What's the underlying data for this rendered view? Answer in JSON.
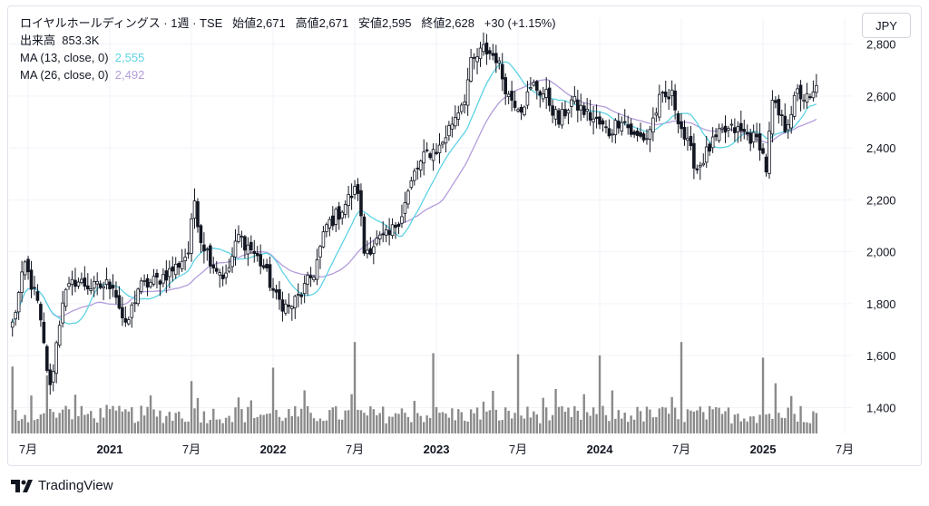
{
  "header": {
    "symbol_line": "ロイヤルホールディングス · 1週 · TSE",
    "open_label": "始値",
    "open": "2,671",
    "high_label": "高値",
    "high": "2,671",
    "low_label": "安値",
    "low": "2,595",
    "close_label": "終値",
    "close": "2,628",
    "change": "+30 (+1.15%)",
    "volume_label": "出来高",
    "volume": "853.3K",
    "ma1_label": "MA (13, close, 0)",
    "ma1_value": "2,555",
    "ma2_label": "MA (26, close, 0)",
    "ma2_value": "2,492"
  },
  "currency": "JPY",
  "footer": {
    "brand": "TradingView"
  },
  "colors": {
    "up": "#131722",
    "down": "#131722",
    "ma13": "#5dd3e4",
    "ma26": "#b39ddb",
    "volume": "#8a8a8a",
    "grid": "#f0f3fa"
  },
  "chart_data": {
    "type": "candlestick",
    "ylim": [
      1300,
      2900
    ],
    "y_ticks": [
      1400,
      1600,
      1800,
      2000,
      2200,
      2400,
      2600,
      2800
    ],
    "y_tick_labels": [
      "1,400",
      "1,600",
      "1,800",
      "2,000",
      "2,200",
      "2,400",
      "2,600",
      "2,800"
    ],
    "x_ticks": [
      {
        "label": "7月",
        "week": 5
      },
      {
        "label": "2021",
        "week": 31
      },
      {
        "label": "7月",
        "week": 57
      },
      {
        "label": "2022",
        "week": 83
      },
      {
        "label": "7月",
        "week": 109
      },
      {
        "label": "2023",
        "week": 135
      },
      {
        "label": "7月",
        "week": 161
      },
      {
        "label": "2024",
        "week": 187
      },
      {
        "label": "7月",
        "week": 213
      },
      {
        "label": "2025",
        "week": 239
      },
      {
        "label": "7月",
        "week": 265
      }
    ],
    "weeks": 260,
    "close_path": [
      [
        0,
        1720
      ],
      [
        4,
        1950
      ],
      [
        8,
        1800
      ],
      [
        12,
        1470
      ],
      [
        16,
        1820
      ],
      [
        20,
        1890
      ],
      [
        26,
        1860
      ],
      [
        32,
        1880
      ],
      [
        36,
        1700
      ],
      [
        40,
        1860
      ],
      [
        46,
        1890
      ],
      [
        52,
        1940
      ],
      [
        56,
        2000
      ],
      [
        58,
        2200
      ],
      [
        60,
        2050
      ],
      [
        64,
        1950
      ],
      [
        68,
        1900
      ],
      [
        72,
        2060
      ],
      [
        76,
        2010
      ],
      [
        80,
        1940
      ],
      [
        84,
        1820
      ],
      [
        88,
        1780
      ],
      [
        92,
        1840
      ],
      [
        96,
        1920
      ],
      [
        100,
        2100
      ],
      [
        104,
        2150
      ],
      [
        108,
        2220
      ],
      [
        110,
        2240
      ],
      [
        112,
        2000
      ],
      [
        116,
        2040
      ],
      [
        120,
        2060
      ],
      [
        124,
        2150
      ],
      [
        128,
        2300
      ],
      [
        132,
        2380
      ],
      [
        136,
        2400
      ],
      [
        140,
        2500
      ],
      [
        144,
        2600
      ],
      [
        146,
        2720
      ],
      [
        150,
        2780
      ],
      [
        154,
        2750
      ],
      [
        158,
        2600
      ],
      [
        162,
        2560
      ],
      [
        166,
        2640
      ],
      [
        170,
        2600
      ],
      [
        174,
        2500
      ],
      [
        178,
        2580
      ],
      [
        182,
        2540
      ],
      [
        186,
        2500
      ],
      [
        190,
        2460
      ],
      [
        194,
        2520
      ],
      [
        198,
        2440
      ],
      [
        202,
        2440
      ],
      [
        206,
        2580
      ],
      [
        210,
        2600
      ],
      [
        214,
        2440
      ],
      [
        218,
        2320
      ],
      [
        222,
        2400
      ],
      [
        226,
        2460
      ],
      [
        230,
        2470
      ],
      [
        234,
        2450
      ],
      [
        238,
        2420
      ],
      [
        240,
        2320
      ],
      [
        242,
        2570
      ],
      [
        246,
        2480
      ],
      [
        250,
        2610
      ],
      [
        254,
        2580
      ],
      [
        256,
        2628
      ]
    ],
    "volume_ylim": [
      0,
      1000
    ],
    "volume_spikes": [
      [
        0,
        600
      ],
      [
        11,
        520
      ],
      [
        57,
        470
      ],
      [
        83,
        590
      ],
      [
        109,
        820
      ],
      [
        134,
        720
      ],
      [
        161,
        710
      ],
      [
        187,
        700
      ],
      [
        213,
        820
      ],
      [
        239,
        680
      ],
      [
        243,
        450
      ]
    ]
  }
}
